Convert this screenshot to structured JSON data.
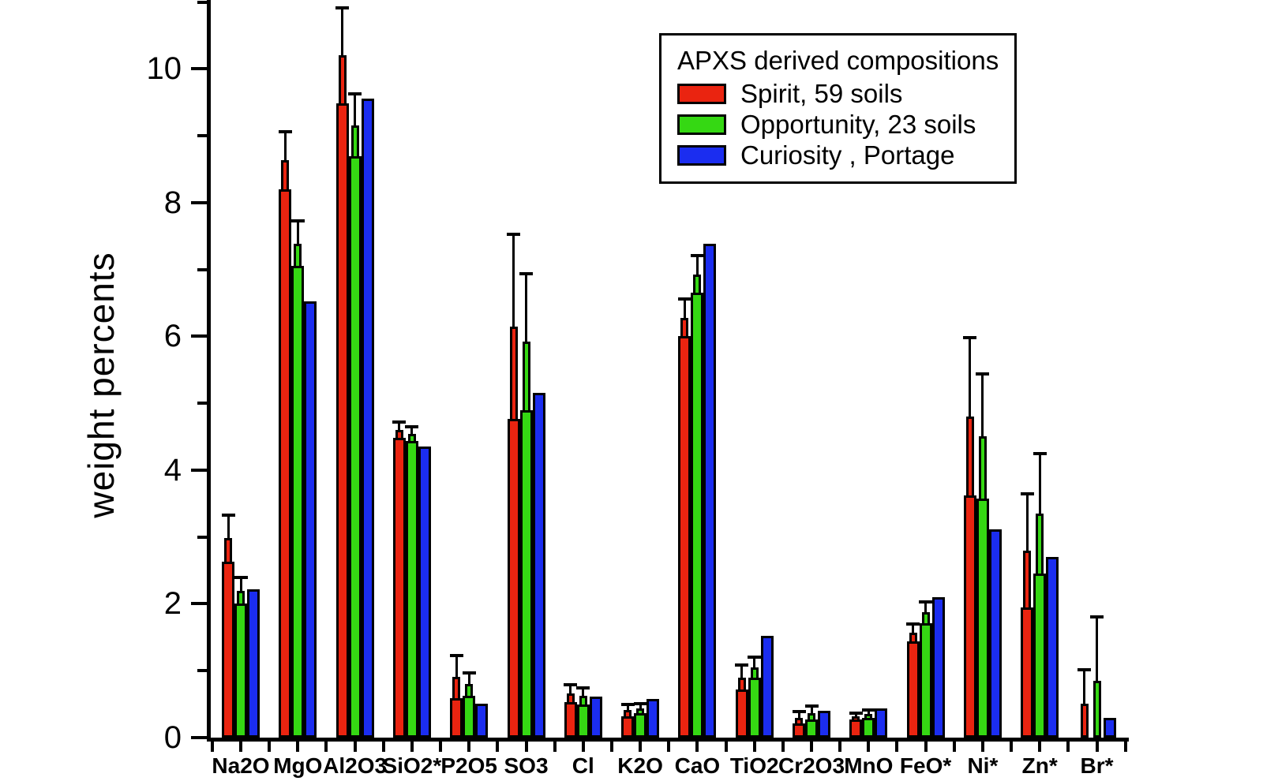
{
  "figure": {
    "background": "#ffffff",
    "axis_color": "#000000"
  },
  "legend": {
    "title": "APXS derived compositions",
    "position": "top-right"
  },
  "chart_data": {
    "type": "bar",
    "title": "",
    "xlabel": "",
    "ylabel": "weight percents",
    "ylim": [
      0,
      11.03
    ],
    "y_major_ticks": [
      0,
      2,
      4,
      6,
      8,
      10
    ],
    "y_minor_ticks": [
      1,
      3,
      5,
      7,
      9,
      11
    ],
    "grid": "off",
    "legend_title": "APXS derived compositions",
    "legend_position": "top-right",
    "error_bars": "plus-minus one sigma, shown on Spirit and Opportunity series only",
    "categories": [
      "Na2O",
      "MgO",
      "Al2O3",
      "SiO2*",
      "P2O5",
      "SO3",
      "Cl",
      "K2O",
      "CaO",
      "TiO2",
      "Cr2O3",
      "MnO",
      "FeO*",
      "Ni*",
      "Zn*",
      "Br*"
    ],
    "series": [
      {
        "name": "Spirit, 59 soils",
        "color": "#ea2410",
        "values": [
          2.98,
          8.63,
          10.2,
          4.6,
          0.91,
          6.15,
          0.66,
          0.41,
          6.28,
          0.9,
          0.3,
          0.32,
          1.57,
          4.8,
          2.8,
          0.51
        ],
        "errors": [
          0.35,
          0.43,
          0.71,
          0.12,
          0.32,
          1.38,
          0.13,
          0.09,
          0.28,
          0.18,
          0.09,
          0.05,
          0.13,
          1.18,
          0.85,
          0.5
        ]
      },
      {
        "name": "Opportunity, 23 soils",
        "color": "#35d813",
        "values": [
          2.2,
          7.39,
          9.16,
          4.54,
          0.8,
          5.92,
          0.62,
          0.44,
          6.93,
          1.05,
          0.37,
          0.35,
          1.87,
          4.51,
          3.35,
          0.85
        ],
        "errors": [
          0.19,
          0.34,
          0.47,
          0.11,
          0.17,
          1.02,
          0.12,
          0.07,
          0.28,
          0.15,
          0.1,
          0.06,
          0.16,
          0.93,
          0.9,
          0.95
        ]
      },
      {
        "name": "Curiosity , Portage",
        "color": "#1b2df0",
        "values": [
          2.22,
          6.52,
          9.56,
          4.35,
          0.51,
          5.16,
          0.61,
          0.58,
          7.38,
          1.52,
          0.4,
          0.44,
          2.1,
          3.12,
          2.7,
          0.3
        ],
        "errors": null
      }
    ]
  }
}
